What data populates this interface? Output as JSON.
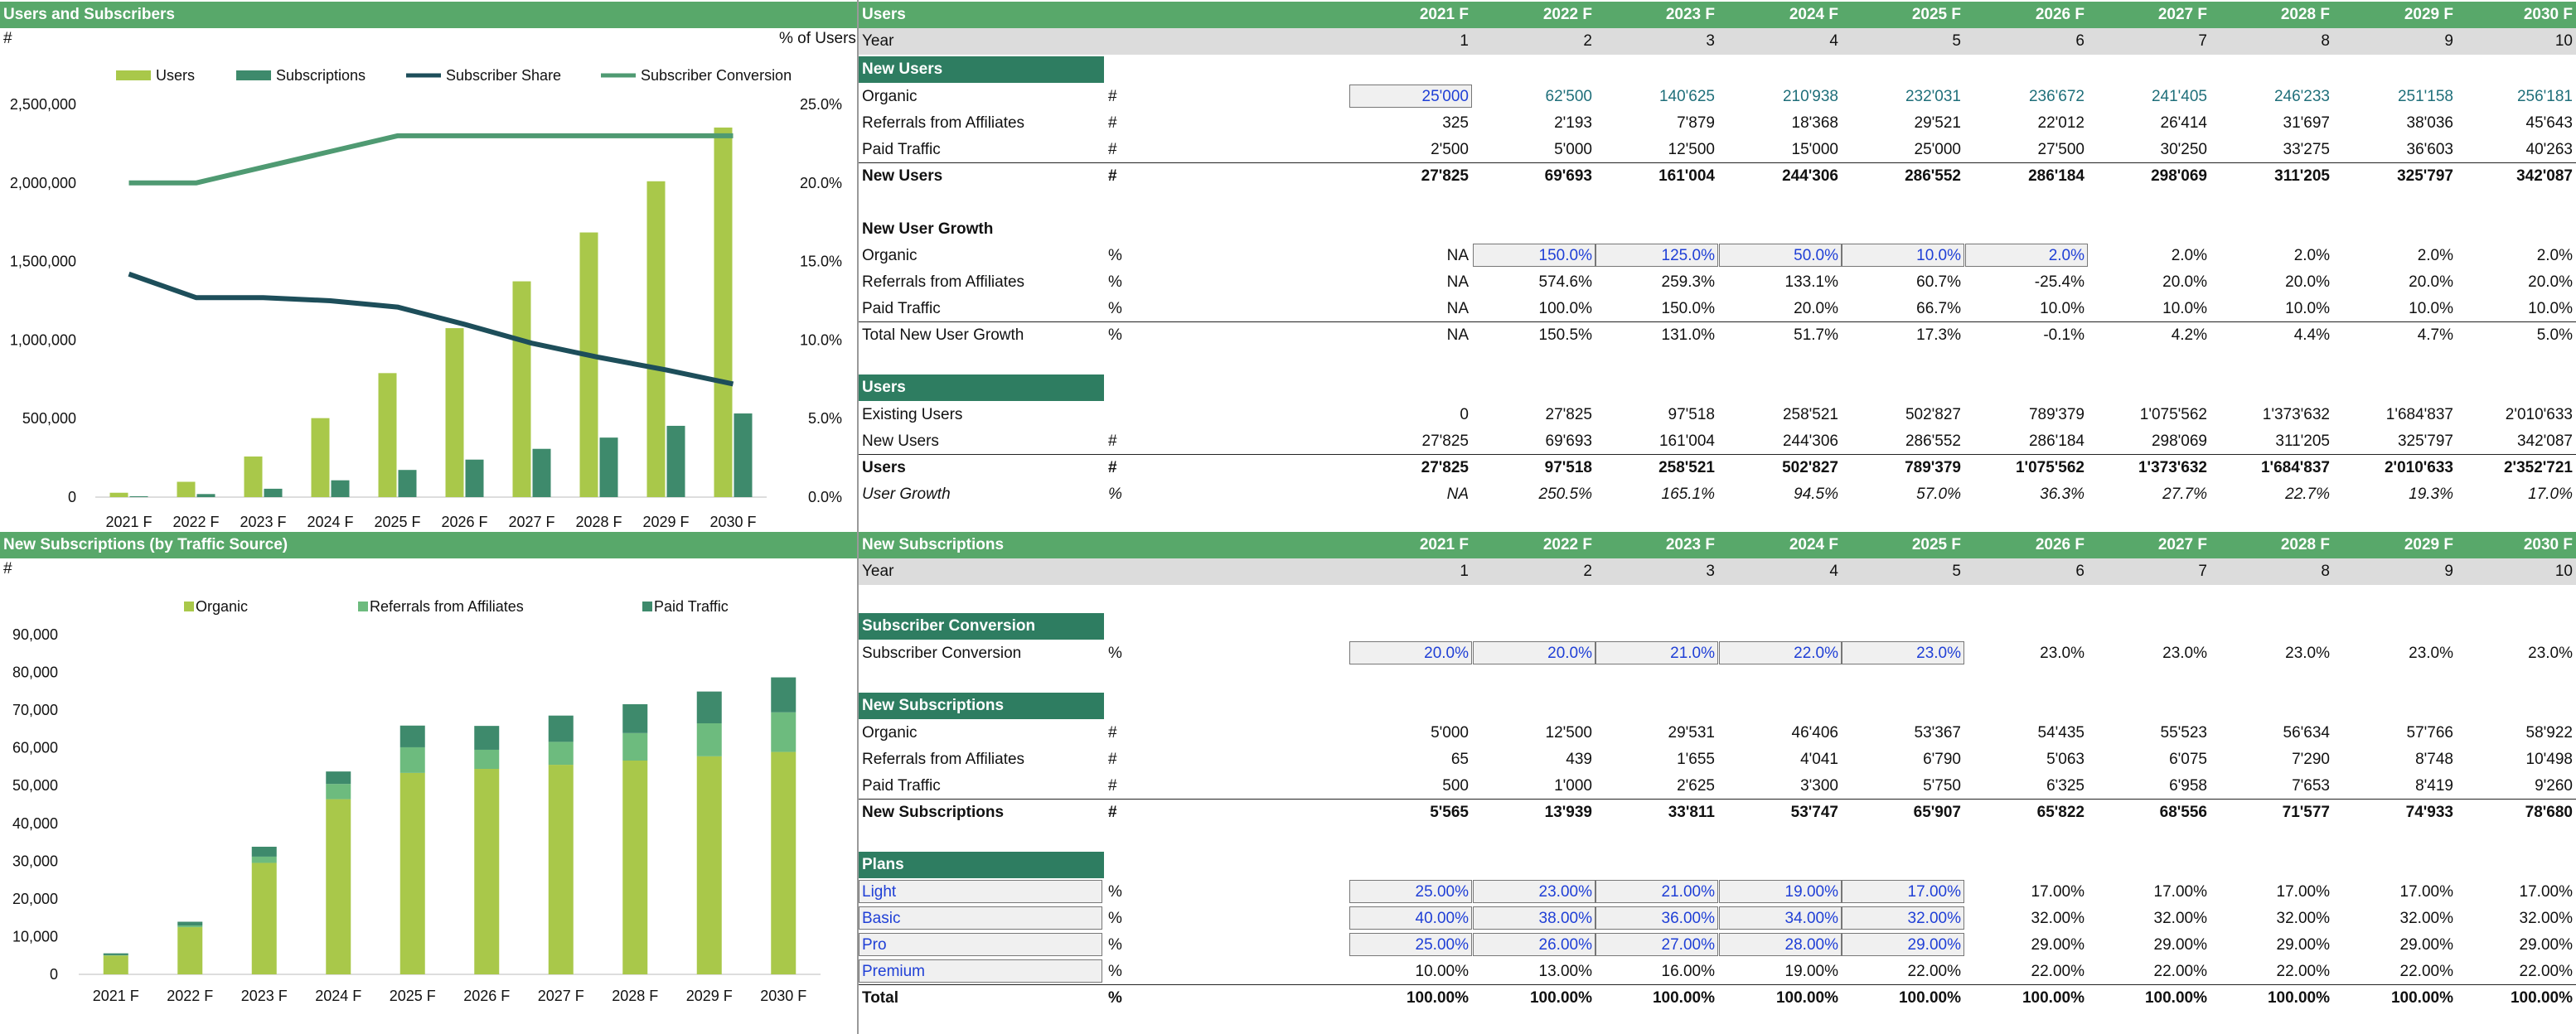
{
  "left_top": {
    "title": "Users and Subscribers",
    "unit_left": "#",
    "unit_right": "% of Users",
    "legend": [
      {
        "name": "Users",
        "color": "#a9c84a",
        "kind": "bar"
      },
      {
        "name": "Subscriptions",
        "color": "#3e8a6c",
        "kind": "bar"
      },
      {
        "name": "Subscriber Share",
        "color": "#1d4e5a",
        "kind": "line"
      },
      {
        "name": "Subscriber Conversion",
        "color": "#4f9a72",
        "kind": "line"
      }
    ],
    "left_ticks": [
      "2,500,000",
      "2,000,000",
      "1,500,000",
      "1,000,000",
      "500,000",
      "0"
    ],
    "right_ticks": [
      "25.0%",
      "20.0%",
      "15.0%",
      "10.0%",
      "5.0%",
      "0.0%"
    ]
  },
  "left_bottom": {
    "title": "New Subscriptions (by Traffic Source)",
    "unit_left": "#",
    "legend": [
      {
        "name": "Organic",
        "color": "#a9c84a"
      },
      {
        "name": "Referrals from Affiliates",
        "color": "#6dbb7e"
      },
      {
        "name": "Paid Traffic",
        "color": "#3e8a6c"
      }
    ],
    "ticks": [
      "90,000",
      "80,000",
      "70,000",
      "60,000",
      "50,000",
      "40,000",
      "30,000",
      "20,000",
      "10,000",
      "0"
    ]
  },
  "chart_data": [
    {
      "type": "bar",
      "title": "Users and Subscribers",
      "categories": [
        "2021 F",
        "2022 F",
        "2023 F",
        "2024 F",
        "2025 F",
        "2026 F",
        "2027 F",
        "2028 F",
        "2029 F",
        "2030 F"
      ],
      "ylim": [
        0,
        2500000
      ],
      "y2lim": [
        0,
        25
      ],
      "series": [
        {
          "name": "Users",
          "type": "bar",
          "values": [
            27825,
            97518,
            258521,
            502827,
            789379,
            1075562,
            1373632,
            1684837,
            2010633,
            2352721
          ]
        },
        {
          "name": "Subscriptions",
          "type": "bar",
          "values": [
            5565,
            19504,
            53315,
            107062,
            172969,
            238791,
            307347,
            378924,
            453857,
            532537
          ]
        },
        {
          "name": "Subscriber Share",
          "type": "line",
          "axis": "right",
          "values": [
            14.2,
            12.7,
            12.7,
            12.5,
            12.1,
            11.0,
            9.8,
            8.9,
            8.1,
            7.2
          ]
        },
        {
          "name": "Subscriber Conversion",
          "type": "line",
          "axis": "right",
          "values": [
            20.0,
            20.0,
            21.0,
            22.0,
            23.0,
            23.0,
            23.0,
            23.0,
            23.0,
            23.0
          ]
        }
      ]
    },
    {
      "type": "bar",
      "title": "New Subscriptions (by Traffic Source)",
      "stacked": true,
      "categories": [
        "2021 F",
        "2022 F",
        "2023 F",
        "2024 F",
        "2025 F",
        "2026 F",
        "2027 F",
        "2028 F",
        "2029 F",
        "2030 F"
      ],
      "ylim": [
        0,
        90000
      ],
      "series": [
        {
          "name": "Organic",
          "values": [
            5000,
            12500,
            29531,
            46406,
            53367,
            54435,
            55523,
            56634,
            57766,
            58922
          ]
        },
        {
          "name": "Referrals from Affiliates",
          "values": [
            65,
            439,
            1655,
            4041,
            6790,
            5063,
            6075,
            7290,
            8748,
            10498
          ]
        },
        {
          "name": "Paid Traffic",
          "values": [
            500,
            1000,
            2625,
            3300,
            5750,
            6325,
            6958,
            7653,
            8419,
            9260
          ]
        }
      ]
    }
  ],
  "right_top": {
    "title": "Users",
    "years": [
      "2021 F",
      "2022 F",
      "2023 F",
      "2024 F",
      "2025 F",
      "2026 F",
      "2027 F",
      "2028 F",
      "2029 F",
      "2030 F"
    ],
    "year_label": "Year",
    "year_idx": [
      "1",
      "2",
      "3",
      "4",
      "5",
      "6",
      "7",
      "8",
      "9",
      "10"
    ],
    "sections": [
      {
        "chip": "New Users",
        "y": 68,
        "rows": [
          {
            "label": "Organic",
            "unit": "#",
            "values": [
              "25'000",
              "62'500",
              "140'625",
              "210'938",
              "232'031",
              "236'672",
              "241'405",
              "246'233",
              "251'158",
              "256'181"
            ],
            "style": "teal",
            "input_cols": [
              0
            ]
          },
          {
            "label": "Referrals from Affiliates",
            "unit": "#",
            "values": [
              "325",
              "2'193",
              "7'879",
              "18'368",
              "29'521",
              "22'012",
              "26'414",
              "31'697",
              "38'036",
              "45'643"
            ]
          },
          {
            "label": "Paid Traffic",
            "unit": "#",
            "values": [
              "2'500",
              "5'000",
              "12'500",
              "15'000",
              "25'000",
              "27'500",
              "30'250",
              "33'275",
              "36'603",
              "40'263"
            ]
          },
          {
            "label": "New Users",
            "unit": "#",
            "values": [
              "27'825",
              "69'693",
              "161'004",
              "244'306",
              "286'552",
              "286'184",
              "298'069",
              "311'205",
              "325'797",
              "342'087"
            ],
            "style": "bold",
            "topline": true
          }
        ]
      },
      {
        "title": "New User Growth",
        "y": 260,
        "rows": [
          {
            "label": "Organic",
            "unit": "%",
            "values": [
              "NA",
              "150.0%",
              "125.0%",
              "50.0%",
              "10.0%",
              "2.0%",
              "2.0%",
              "2.0%",
              "2.0%",
              "2.0%"
            ],
            "input_cols": [
              1,
              2,
              3,
              4,
              5
            ]
          },
          {
            "label": "Referrals from Affiliates",
            "unit": "%",
            "values": [
              "NA",
              "574.6%",
              "259.3%",
              "133.1%",
              "60.7%",
              "-25.4%",
              "20.0%",
              "20.0%",
              "20.0%",
              "20.0%"
            ]
          },
          {
            "label": "Paid Traffic",
            "unit": "%",
            "values": [
              "NA",
              "100.0%",
              "150.0%",
              "20.0%",
              "66.7%",
              "10.0%",
              "10.0%",
              "10.0%",
              "10.0%",
              "10.0%"
            ]
          },
          {
            "label": "Total New User Growth",
            "unit": "%",
            "values": [
              "NA",
              "150.5%",
              "131.0%",
              "51.7%",
              "17.3%",
              "-0.1%",
              "4.2%",
              "4.4%",
              "4.7%",
              "5.0%"
            ],
            "topline": true
          }
        ]
      },
      {
        "chip": "Users",
        "y": 452,
        "rows": [
          {
            "label": "Existing Users",
            "unit": "",
            "values": [
              "0",
              "27'825",
              "97'518",
              "258'521",
              "502'827",
              "789'379",
              "1'075'562",
              "1'373'632",
              "1'684'837",
              "2'010'633"
            ]
          },
          {
            "label": "New Users",
            "unit": "#",
            "values": [
              "27'825",
              "69'693",
              "161'004",
              "244'306",
              "286'552",
              "286'184",
              "298'069",
              "311'205",
              "325'797",
              "342'087"
            ]
          },
          {
            "label": "Users",
            "unit": "#",
            "values": [
              "27'825",
              "97'518",
              "258'521",
              "502'827",
              "789'379",
              "1'075'562",
              "1'373'632",
              "1'684'837",
              "2'010'633",
              "2'352'721"
            ],
            "style": "bold",
            "topline": true
          },
          {
            "label": "User Growth",
            "unit": "%",
            "values": [
              "NA",
              "250.5%",
              "165.1%",
              "94.5%",
              "57.0%",
              "36.3%",
              "27.7%",
              "22.7%",
              "19.3%",
              "17.0%"
            ],
            "style": "ital"
          }
        ]
      }
    ]
  },
  "right_bottom": {
    "title": "New Subscriptions",
    "sections": [
      {
        "chip": "Subscriber Conversion",
        "y": 740,
        "rows": [
          {
            "label": "Subscriber Conversion",
            "unit": "%",
            "values": [
              "20.0%",
              "20.0%",
              "21.0%",
              "22.0%",
              "23.0%",
              "23.0%",
              "23.0%",
              "23.0%",
              "23.0%",
              "23.0%"
            ],
            "input_cols": [
              0,
              1,
              2,
              3,
              4
            ],
            "blue_cols": [
              0,
              1,
              2,
              3,
              4
            ]
          }
        ]
      },
      {
        "chip": "New Subscriptions",
        "y": 836,
        "rows": [
          {
            "label": "Organic",
            "unit": "#",
            "values": [
              "5'000",
              "12'500",
              "29'531",
              "46'406",
              "53'367",
              "54'435",
              "55'523",
              "56'634",
              "57'766",
              "58'922"
            ]
          },
          {
            "label": "Referrals from Affiliates",
            "unit": "#",
            "values": [
              "65",
              "439",
              "1'655",
              "4'041",
              "6'790",
              "5'063",
              "6'075",
              "7'290",
              "8'748",
              "10'498"
            ]
          },
          {
            "label": "Paid Traffic",
            "unit": "#",
            "values": [
              "500",
              "1'000",
              "2'625",
              "3'300",
              "5'750",
              "6'325",
              "6'958",
              "7'653",
              "8'419",
              "9'260"
            ]
          },
          {
            "label": "New Subscriptions",
            "unit": "#",
            "values": [
              "5'565",
              "13'939",
              "33'811",
              "53'747",
              "65'907",
              "65'822",
              "68'556",
              "71'577",
              "74'933",
              "78'680"
            ],
            "style": "bold",
            "topline": true
          }
        ]
      },
      {
        "chip": "Plans",
        "y": 1028,
        "rows": [
          {
            "label": "Light",
            "unit": "%",
            "values": [
              "25.00%",
              "23.00%",
              "21.00%",
              "19.00%",
              "17.00%",
              "17.00%",
              "17.00%",
              "17.00%",
              "17.00%",
              "17.00%"
            ],
            "input_cols": [
              0,
              1,
              2,
              3,
              4
            ],
            "blue_cols": [
              0,
              1,
              2,
              3,
              4
            ],
            "label_blue": true,
            "label_box": true
          },
          {
            "label": "Basic",
            "unit": "%",
            "values": [
              "40.00%",
              "38.00%",
              "36.00%",
              "34.00%",
              "32.00%",
              "32.00%",
              "32.00%",
              "32.00%",
              "32.00%",
              "32.00%"
            ],
            "input_cols": [
              0,
              1,
              2,
              3,
              4
            ],
            "blue_cols": [
              0,
              1,
              2,
              3,
              4
            ],
            "label_blue": true,
            "label_box": true
          },
          {
            "label": "Pro",
            "unit": "%",
            "values": [
              "25.00%",
              "26.00%",
              "27.00%",
              "28.00%",
              "29.00%",
              "29.00%",
              "29.00%",
              "29.00%",
              "29.00%",
              "29.00%"
            ],
            "input_cols": [
              0,
              1,
              2,
              3,
              4
            ],
            "blue_cols": [
              0,
              1,
              2,
              3,
              4
            ],
            "label_blue": true,
            "label_box": true
          },
          {
            "label": "Premium",
            "unit": "%",
            "values": [
              "10.00%",
              "13.00%",
              "16.00%",
              "19.00%",
              "22.00%",
              "22.00%",
              "22.00%",
              "22.00%",
              "22.00%",
              "22.00%"
            ],
            "label_blue": true,
            "label_box": true
          },
          {
            "label": "Total",
            "unit": "%",
            "values": [
              "100.00%",
              "100.00%",
              "100.00%",
              "100.00%",
              "100.00%",
              "100.00%",
              "100.00%",
              "100.00%",
              "100.00%",
              "100.00%"
            ],
            "style": "bold",
            "topline": true
          }
        ]
      }
    ]
  }
}
